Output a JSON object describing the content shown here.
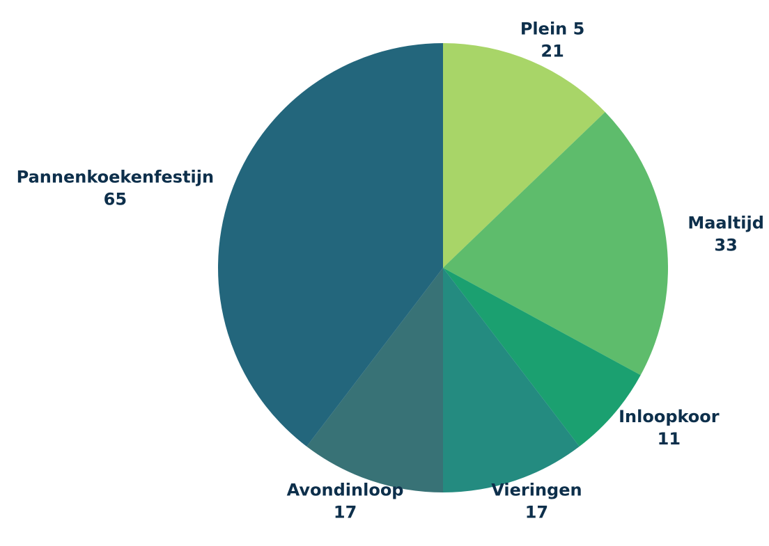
{
  "chart_data": {
    "type": "pie",
    "categories": [
      "Plein 5",
      "Maaltijd",
      "Inloopkoor",
      "Vieringen",
      "Avondinloop",
      "Pannenkoekenfestijn"
    ],
    "values": [
      21,
      33,
      11,
      17,
      17,
      65
    ],
    "colors": [
      "#a8d568",
      "#5ebc6c",
      "#1ba070",
      "#248b80",
      "#387276",
      "#23667c"
    ]
  }
}
